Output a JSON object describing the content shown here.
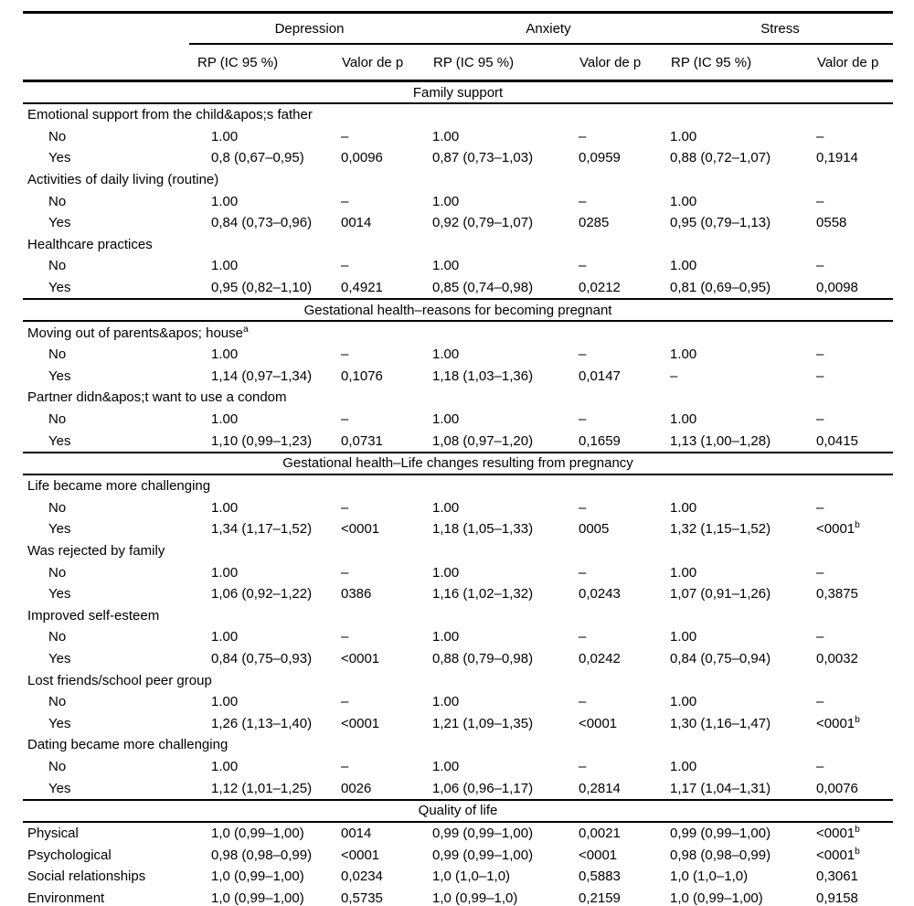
{
  "colors": {
    "text": "#000000",
    "background": "#ffffff",
    "rule": "#000000"
  },
  "table": {
    "column_groups": [
      {
        "label": "Depression"
      },
      {
        "label": "Anxiety"
      },
      {
        "label": "Stress"
      }
    ],
    "subheader": {
      "rp_label": "RP (IC 95 %)",
      "p_label": "Valor de p"
    },
    "sections": [
      {
        "title": "Family support",
        "rows": [
          {
            "label": "Emotional support from the child&apos;s father",
            "indent": false,
            "cells": [
              "",
              "",
              "",
              "",
              "",
              ""
            ]
          },
          {
            "label": "No",
            "indent": true,
            "cells": [
              "1.00",
              "–",
              "1.00",
              "–",
              "1.00",
              "–"
            ]
          },
          {
            "label": "Yes",
            "indent": true,
            "cells": [
              "0,8 (0,67–0,95)",
              "0,0096",
              "0,87 (0,73–1,03)",
              "0,0959",
              "0,88 (0,72–1,07)",
              "0,1914"
            ]
          },
          {
            "label": "Activities of daily living (routine)",
            "indent": false,
            "cells": [
              "",
              "",
              "",
              "",
              "",
              ""
            ]
          },
          {
            "label": "No",
            "indent": true,
            "cells": [
              "1.00",
              "–",
              "1.00",
              "–",
              "1.00",
              "–"
            ]
          },
          {
            "label": "Yes",
            "indent": true,
            "cells": [
              "0,84 (0,73–0,96)",
              "0014",
              "0,92 (0,79–1,07)",
              "0285",
              "0,95 (0,79–1,13)",
              "0558"
            ]
          },
          {
            "label": "Healthcare practices",
            "indent": false,
            "cells": [
              "",
              "",
              "",
              "",
              "",
              ""
            ]
          },
          {
            "label": "No",
            "indent": true,
            "cells": [
              "1.00",
              "–",
              "1.00",
              "–",
              "1.00",
              "–"
            ]
          },
          {
            "label": "Yes",
            "indent": true,
            "cells": [
              "0,95 (0,82–1,10)",
              "0,4921",
              "0,85 (0,74–0,98)",
              "0,0212",
              "0,81 (0,69–0,95)",
              "0,0098"
            ]
          }
        ]
      },
      {
        "title": "Gestational health–reasons for becoming pregnant",
        "rows": [
          {
            "label": "Moving out of parents&apos; house^a",
            "indent": false,
            "cells": [
              "",
              "",
              "",
              "",
              "",
              ""
            ]
          },
          {
            "label": "No",
            "indent": true,
            "cells": [
              "1.00",
              "–",
              "1.00",
              "–",
              "1.00",
              "–"
            ]
          },
          {
            "label": "Yes",
            "indent": true,
            "cells": [
              "1,14 (0,97–1,34)",
              "0,1076",
              "1,18 (1,03–1,36)",
              "0,0147",
              "–",
              "–"
            ]
          },
          {
            "label": "Partner didn&apos;t want to use a condom",
            "indent": false,
            "cells": [
              "",
              "",
              "",
              "",
              "",
              ""
            ]
          },
          {
            "label": "No",
            "indent": true,
            "cells": [
              "1.00",
              "–",
              "1.00",
              "–",
              "1.00",
              "–"
            ]
          },
          {
            "label": "Yes",
            "indent": true,
            "cells": [
              "1,10 (0,99–1,23)",
              "0,0731",
              "1,08 (0,97–1,20)",
              "0,1659",
              "1,13 (1,00–1,28)",
              "0,0415"
            ]
          }
        ]
      },
      {
        "title": "Gestational health–Life changes resulting from pregnancy",
        "rows": [
          {
            "label": "Life became more challenging",
            "indent": false,
            "cells": [
              "",
              "",
              "",
              "",
              "",
              ""
            ]
          },
          {
            "label": "No",
            "indent": true,
            "cells": [
              "1.00",
              "–",
              "1.00",
              "–",
              "1.00",
              "–"
            ]
          },
          {
            "label": "Yes",
            "indent": true,
            "cells": [
              "1,34 (1,17–1,52)",
              "<0001",
              "1,18 (1,05–1,33)",
              "0005",
              "1,32 (1,15–1,52)",
              "<0001^b"
            ]
          },
          {
            "label": "Was rejected by family",
            "indent": false,
            "cells": [
              "",
              "",
              "",
              "",
              "",
              ""
            ]
          },
          {
            "label": "No",
            "indent": true,
            "cells": [
              "1.00",
              "–",
              "1.00",
              "–",
              "1.00",
              "–"
            ]
          },
          {
            "label": "Yes",
            "indent": true,
            "cells": [
              "1,06 (0,92–1,22)",
              "0386",
              "1,16 (1,02–1,32)",
              "0,0243",
              "1,07 (0,91–1,26)",
              "0,3875"
            ]
          },
          {
            "label": "Improved self-esteem",
            "indent": false,
            "cells": [
              "",
              "",
              "",
              "",
              "",
              ""
            ]
          },
          {
            "label": "No",
            "indent": true,
            "cells": [
              "1.00",
              "–",
              "1.00",
              "–",
              "1.00",
              "–"
            ]
          },
          {
            "label": "Yes",
            "indent": true,
            "cells": [
              "0,84 (0,75–0,93)",
              "<0001",
              "0,88 (0,79–0,98)",
              "0,0242",
              "0,84 (0,75–0,94)",
              "0,0032"
            ]
          },
          {
            "label": "Lost friends/school peer group",
            "indent": false,
            "cells": [
              "",
              "",
              "",
              "",
              "",
              ""
            ]
          },
          {
            "label": "No",
            "indent": true,
            "cells": [
              "1.00",
              "–",
              "1.00",
              "–",
              "1.00",
              "–"
            ]
          },
          {
            "label": "Yes",
            "indent": true,
            "cells": [
              "1,26 (1,13–1,40)",
              "<0001",
              "1,21 (1,09–1,35)",
              "<0001",
              "1,30 (1,16–1,47)",
              "<0001^b"
            ]
          },
          {
            "label": "Dating became more challenging",
            "indent": false,
            "cells": [
              "",
              "",
              "",
              "",
              "",
              ""
            ]
          },
          {
            "label": "No",
            "indent": true,
            "cells": [
              "1.00",
              "–",
              "1.00",
              "–",
              "1.00",
              "–"
            ]
          },
          {
            "label": "Yes",
            "indent": true,
            "cells": [
              "1,12 (1,01–1,25)",
              "0026",
              "1,06 (0,96–1,17)",
              "0,2814",
              "1,17 (1,04–1,31)",
              "0,0076"
            ]
          }
        ]
      },
      {
        "title": "Quality of life",
        "rows": [
          {
            "label": "Physical",
            "indent": false,
            "cells": [
              "1,0 (0,99–1,00)",
              "0014",
              "0,99 (0,99–1,00)",
              "0,0021",
              "0,99 (0,99–1,00)",
              "<0001^b"
            ]
          },
          {
            "label": "Psychological",
            "indent": false,
            "cells": [
              "0,98 (0,98–0,99)",
              "<0001",
              "0,99 (0,99–1,00)",
              "<0001",
              "0,98 (0,98–0,99)",
              "<0001^b"
            ]
          },
          {
            "label": "Social relationships",
            "indent": false,
            "cells": [
              "1,0 (0,99–1,00)",
              "0,0234",
              "1,0 (1,0–1,0)",
              "0,5883",
              "1,0 (1,0–1,0)",
              "0,3061"
            ]
          },
          {
            "label": "Environment",
            "indent": false,
            "cells": [
              "1,0 (0,99–1,00)",
              "0,5735",
              "1,0 (0,99–1,0)",
              "0,2159",
              "1,0 (0,99–1,00)",
              "0,9158"
            ]
          }
        ]
      }
    ]
  }
}
